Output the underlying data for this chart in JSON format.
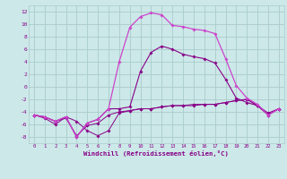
{
  "xlabel": "Windchill (Refroidissement éolien,°C)",
  "xlim": [
    -0.5,
    23.5
  ],
  "ylim": [
    -9,
    13
  ],
  "yticks": [
    -8,
    -6,
    -4,
    -2,
    0,
    2,
    4,
    6,
    8,
    10,
    12
  ],
  "xticks": [
    0,
    1,
    2,
    3,
    4,
    5,
    6,
    7,
    8,
    9,
    10,
    11,
    12,
    13,
    14,
    15,
    16,
    17,
    18,
    19,
    20,
    21,
    22,
    23
  ],
  "bg_color": "#cce8e8",
  "grid_color": "#aacccc",
  "line_color_dark": "#880088",
  "line_color_bright": "#cc44cc",
  "curve_big": [
    -4.5,
    -4.8,
    -5.5,
    -4.8,
    -8.0,
    -5.8,
    -5.2,
    -3.5,
    4.0,
    9.5,
    11.2,
    11.8,
    11.5,
    9.8,
    9.6,
    9.2,
    9.0,
    8.5,
    4.5,
    0.2,
    -1.8,
    -2.8,
    -4.5,
    -3.5
  ],
  "curve_mid": [
    -4.5,
    -4.8,
    -5.5,
    -4.8,
    -8.0,
    -5.8,
    -5.2,
    -3.5,
    -3.5,
    -3.2,
    2.5,
    5.5,
    6.5,
    6.0,
    5.2,
    4.8,
    4.5,
    3.8,
    1.2,
    -1.8,
    -2.5,
    -3.0,
    -4.2,
    -3.5
  ],
  "curve_flat1": [
    -4.5,
    -5.0,
    -6.0,
    -4.8,
    -5.5,
    -7.0,
    -7.8,
    -7.0,
    -4.2,
    -3.8,
    -3.5,
    -3.5,
    -3.2,
    -3.0,
    -3.0,
    -2.8,
    -2.8,
    -2.8,
    -2.5,
    -2.2,
    -2.0,
    -3.0,
    -4.5,
    -3.5
  ],
  "curve_flat2": [
    -4.5,
    -4.8,
    -5.5,
    -5.0,
    -7.8,
    -6.2,
    -5.8,
    -4.5,
    -4.0,
    -3.8,
    -3.5,
    -3.5,
    -3.2,
    -3.0,
    -3.0,
    -3.0,
    -2.8,
    -2.8,
    -2.5,
    -2.2,
    -2.0,
    -3.0,
    -4.5,
    -3.5
  ]
}
